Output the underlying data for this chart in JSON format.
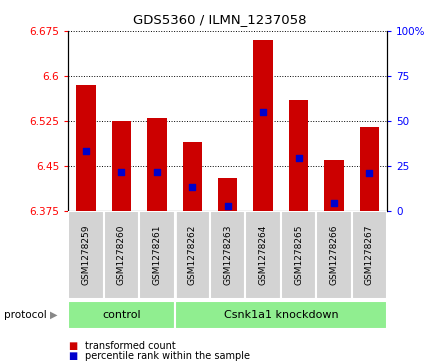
{
  "title": "GDS5360 / ILMN_1237058",
  "samples": [
    "GSM1278259",
    "GSM1278260",
    "GSM1278261",
    "GSM1278262",
    "GSM1278263",
    "GSM1278264",
    "GSM1278265",
    "GSM1278266",
    "GSM1278267"
  ],
  "bar_tops": [
    6.585,
    6.525,
    6.53,
    6.49,
    6.43,
    6.66,
    6.56,
    6.46,
    6.515
  ],
  "bar_bottoms": [
    6.375,
    6.375,
    6.375,
    6.375,
    6.375,
    6.375,
    6.375,
    6.375,
    6.375
  ],
  "blue_dot_values": [
    6.475,
    6.44,
    6.44,
    6.415,
    6.383,
    6.54,
    6.463,
    6.388,
    6.438
  ],
  "ylim_left": [
    6.375,
    6.675
  ],
  "ylim_right": [
    0,
    100
  ],
  "yticks_left": [
    6.375,
    6.45,
    6.525,
    6.6,
    6.675
  ],
  "yticks_right": [
    0,
    25,
    50,
    75,
    100
  ],
  "group_separator": 3,
  "bar_color": "#CC0000",
  "dot_color": "#0000CC",
  "bar_width": 0.55,
  "sample_box_color": "#d3d3d3",
  "group_color": "#90EE90",
  "control_label": "control",
  "knockdown_label": "Csnk1a1 knockdown",
  "protocol_label": "protocol",
  "legend_items": [
    {
      "label": "transformed count",
      "color": "#CC0000"
    },
    {
      "label": "percentile rank within the sample",
      "color": "#0000CC"
    }
  ]
}
